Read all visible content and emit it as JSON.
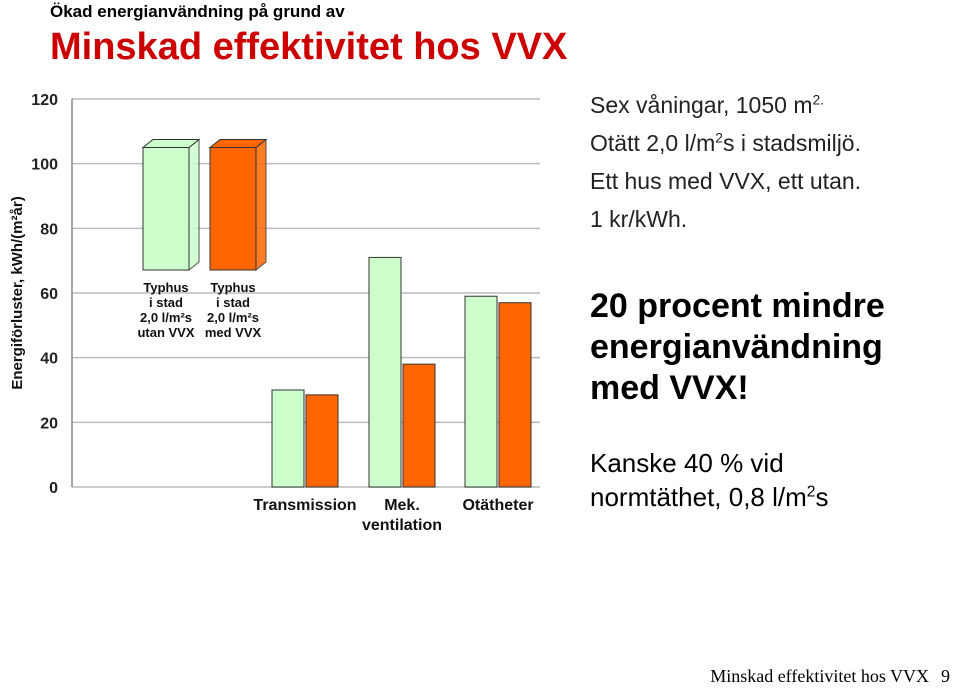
{
  "header": {
    "supertitle": "Ökad energianvändning på grund av",
    "title": "Minskad effektivitet hos VVX"
  },
  "facts": {
    "line1_pre": "Sex våningar, 1050 m",
    "line1_sup": "2.",
    "line2_pre": "Otätt 2,0 l/m",
    "line2_sup": "2",
    "line2_post": "s i stadsmiljö.",
    "line3": "Ett hus med VVX, ett utan.",
    "line4": "1 kr/kWh."
  },
  "conclusion": "20 procent mindre energianvändning med VVX!",
  "note": {
    "line1": "Kanske 40 % vid",
    "line2_pre": "normtäthet, 0,8 l/m",
    "line2_sup": "2",
    "line2_post": "s"
  },
  "footer": {
    "text": "Minskad effektivitet hos VVX",
    "page": "9"
  },
  "colors": {
    "utan": "#ccffcc",
    "med": "#ff6600",
    "title": "#cc0000",
    "grid": "#bbbbbb"
  },
  "chart_data": {
    "type": "bar",
    "ylabel": "Energiförluster, kWh/(m²år)",
    "ylim": [
      0,
      120
    ],
    "yticks": [
      0,
      20,
      40,
      60,
      80,
      100,
      120
    ],
    "grid": true,
    "categories": [
      "Transmission",
      "Mek.\nventilation",
      "Otätheter"
    ],
    "series": [
      {
        "name": "Typhus i stad 2,0 l/m²s utan VVX",
        "values": [
          30,
          71,
          59
        ]
      },
      {
        "name": "Typhus i stad 2,0 l/m²s med VVX",
        "values": [
          28.5,
          38,
          57
        ]
      }
    ],
    "legend": {
      "placement": "top-left",
      "total_values": [
        105,
        105
      ],
      "labels": [
        [
          "Typhus",
          "i stad",
          "2,0 l/m²s",
          "utan VVX"
        ],
        [
          "Typhus",
          "i stad",
          "2,0 l/m²s",
          "med VVX"
        ]
      ]
    }
  }
}
